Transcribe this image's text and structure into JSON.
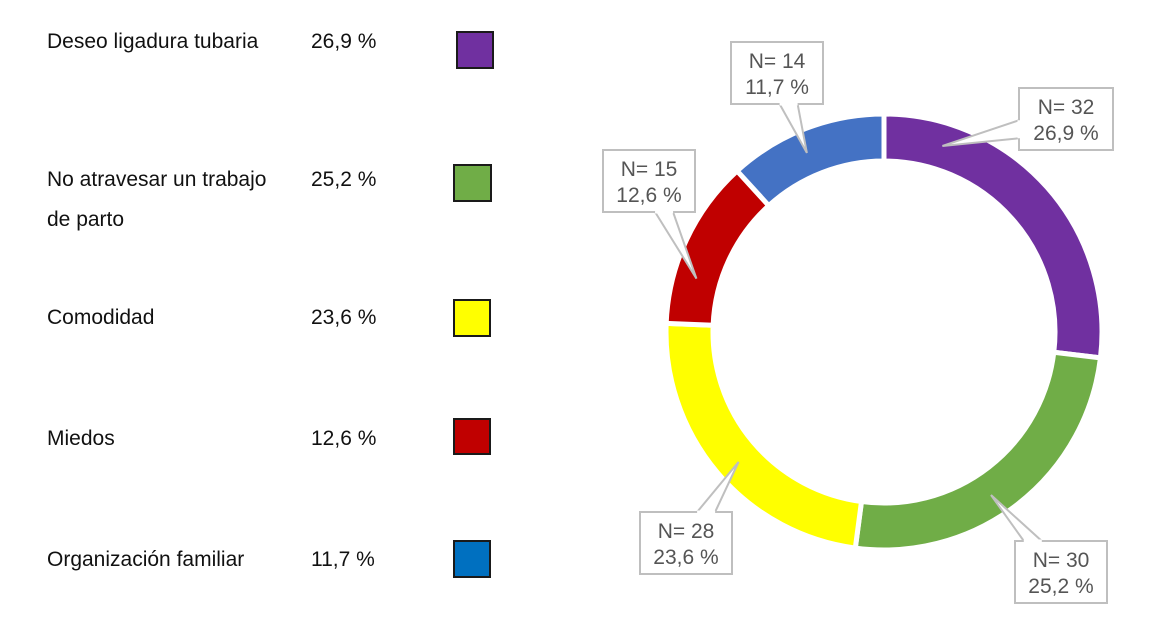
{
  "legend": {
    "items": [
      {
        "label": "Deseo ligadura tubaria",
        "percent": "26,9 %",
        "color": "#7030A0"
      },
      {
        "label": "No atravesar un trabajo de parto",
        "percent": "25,2 %",
        "color": "#70AD47"
      },
      {
        "label": "Comodidad",
        "percent": "23,6 %",
        "color": "#FFFF00"
      },
      {
        "label": "Miedos",
        "percent": "12,6 %",
        "color": "#C00000"
      },
      {
        "label": "Organización familiar",
        "percent": "11,7 %",
        "color": "#0070C0"
      }
    ]
  },
  "chart_data": {
    "type": "pie",
    "variant": "donut",
    "slices": [
      {
        "label": "Deseo ligadura tubaria",
        "n": 32,
        "n_label": "N= 32",
        "percent": 26.9,
        "percent_label": "26,9 %",
        "color": "#7030A0"
      },
      {
        "label": "No atravesar un trabajo de parto",
        "n": 30,
        "n_label": "N= 30",
        "percent": 25.2,
        "percent_label": "25,2 %",
        "color": "#70AD47"
      },
      {
        "label": "Comodidad",
        "n": 28,
        "n_label": "N= 28",
        "percent": 23.6,
        "percent_label": "23,6 %",
        "color": "#FFFF00"
      },
      {
        "label": "Miedos",
        "n": 15,
        "n_label": "N= 15",
        "percent": 12.6,
        "percent_label": "12,6 %",
        "color": "#C00000"
      },
      {
        "label": "Organización familiar",
        "n": 14,
        "n_label": "N= 14",
        "percent": 11.7,
        "percent_label": "11,7 %",
        "color": "#4472C4"
      }
    ],
    "legend_placement": "left"
  }
}
